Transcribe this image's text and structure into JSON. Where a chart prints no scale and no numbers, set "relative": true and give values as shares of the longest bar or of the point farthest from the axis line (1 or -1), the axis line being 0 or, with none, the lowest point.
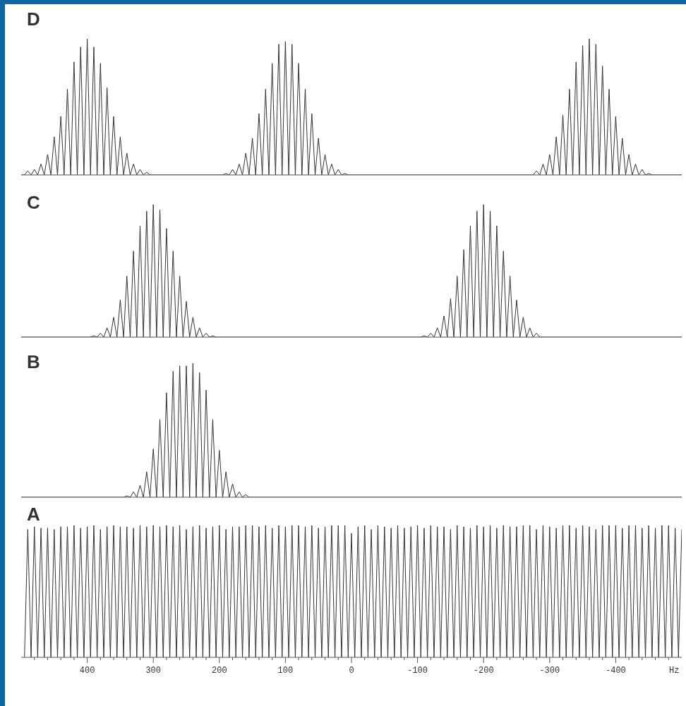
{
  "chart_data": [
    {
      "type": "line",
      "title": "D",
      "relative": true,
      "tick_labels": false,
      "color": "#333333",
      "xlim": [
        500,
        -500
      ],
      "x": [
        500,
        495,
        490,
        485,
        480,
        475,
        470,
        465,
        460,
        455,
        450,
        445,
        440,
        435,
        430,
        425,
        420,
        415,
        410,
        405,
        400,
        395,
        390,
        385,
        380,
        375,
        370,
        365,
        360,
        355,
        350,
        345,
        340,
        335,
        330,
        325,
        320,
        315,
        310,
        305,
        195,
        190,
        185,
        180,
        175,
        170,
        165,
        160,
        155,
        150,
        145,
        140,
        135,
        130,
        125,
        120,
        115,
        110,
        105,
        100,
        95,
        90,
        85,
        80,
        75,
        70,
        65,
        60,
        55,
        50,
        45,
        40,
        35,
        30,
        25,
        20,
        15,
        10,
        5,
        -275,
        -280,
        -285,
        -290,
        -295,
        -300,
        -305,
        -310,
        -315,
        -320,
        -325,
        -330,
        -335,
        -340,
        -345,
        -350,
        -355,
        -360,
        -365,
        -370,
        -375,
        -380,
        -385,
        -390,
        -395,
        -400,
        -405,
        -410,
        -415,
        -420,
        -425,
        -430,
        -435,
        -440,
        -445,
        -450,
        -455,
        -500
      ],
      "values": [
        0,
        0,
        0.03,
        0,
        0.04,
        0,
        0.08,
        0,
        0.15,
        0,
        0.28,
        0,
        0.43,
        0,
        0.63,
        0,
        0.83,
        0,
        0.94,
        0,
        1.0,
        0,
        0.94,
        0,
        0.82,
        0,
        0.64,
        0,
        0.43,
        0,
        0.28,
        0,
        0.16,
        0,
        0.08,
        0,
        0.04,
        0,
        0.02,
        0,
        0,
        0.01,
        0,
        0.04,
        0,
        0.08,
        0,
        0.16,
        0,
        0.27,
        0,
        0.45,
        0,
        0.63,
        0,
        0.82,
        0,
        0.96,
        0,
        0.98,
        0,
        0.96,
        0,
        0.82,
        0,
        0.63,
        0,
        0.45,
        0,
        0.27,
        0,
        0.15,
        0,
        0.08,
        0,
        0.04,
        0,
        0.01,
        0,
        0,
        0.03,
        0,
        0.08,
        0,
        0.15,
        0,
        0.28,
        0,
        0.44,
        0,
        0.63,
        0,
        0.83,
        0,
        0.95,
        0,
        1.0,
        0,
        0.96,
        0,
        0.8,
        0,
        0.63,
        0,
        0.43,
        0,
        0.27,
        0,
        0.15,
        0,
        0.08,
        0,
        0.04,
        0,
        0.01,
        0,
        0
      ]
    },
    {
      "type": "line",
      "title": "C",
      "relative": true,
      "tick_labels": false,
      "color": "#333333",
      "xlim": [
        500,
        -500
      ],
      "x": [
        500,
        395,
        390,
        385,
        380,
        375,
        370,
        365,
        360,
        355,
        350,
        345,
        340,
        335,
        330,
        325,
        320,
        315,
        310,
        305,
        300,
        295,
        290,
        285,
        280,
        275,
        270,
        265,
        260,
        255,
        250,
        245,
        240,
        235,
        230,
        225,
        220,
        215,
        210,
        205,
        -105,
        -110,
        -115,
        -120,
        -125,
        -130,
        -135,
        -140,
        -145,
        -150,
        -155,
        -160,
        -165,
        -170,
        -175,
        -180,
        -185,
        -190,
        -195,
        -200,
        -205,
        -210,
        -215,
        -220,
        -225,
        -230,
        -235,
        -240,
        -245,
        -250,
        -255,
        -260,
        -265,
        -270,
        -275,
        -280,
        -285,
        -500
      ],
      "values": [
        0,
        0,
        0.01,
        0,
        0.03,
        0,
        0.07,
        0,
        0.15,
        0,
        0.28,
        0,
        0.46,
        0,
        0.65,
        0,
        0.84,
        0,
        0.95,
        0,
        1.0,
        0,
        0.96,
        0,
        0.82,
        0,
        0.65,
        0,
        0.46,
        0,
        0.27,
        0,
        0.15,
        0,
        0.07,
        0,
        0.03,
        0,
        0.01,
        0,
        0,
        0.01,
        0,
        0.03,
        0,
        0.07,
        0,
        0.16,
        0,
        0.29,
        0,
        0.46,
        0,
        0.66,
        0,
        0.84,
        0,
        0.95,
        0,
        1.0,
        0,
        0.95,
        0,
        0.84,
        0,
        0.65,
        0,
        0.46,
        0,
        0.28,
        0,
        0.15,
        0,
        0.07,
        0,
        0.03,
        0,
        0
      ]
    },
    {
      "type": "line",
      "title": "B",
      "relative": true,
      "tick_labels": false,
      "color": "#333333",
      "xlim": [
        500,
        -500
      ],
      "x": [
        500,
        345,
        340,
        335,
        330,
        325,
        320,
        315,
        310,
        305,
        300,
        295,
        290,
        285,
        280,
        275,
        270,
        265,
        260,
        255,
        250,
        245,
        240,
        235,
        230,
        225,
        220,
        215,
        210,
        205,
        200,
        195,
        190,
        185,
        180,
        175,
        170,
        165,
        160,
        155,
        -500
      ],
      "values": [
        0,
        0,
        0.01,
        0,
        0.04,
        0,
        0.09,
        0,
        0.19,
        0,
        0.36,
        0,
        0.58,
        0,
        0.78,
        0,
        0.94,
        0,
        0.98,
        0,
        0.98,
        0,
        1.0,
        0,
        0.93,
        0,
        0.8,
        0,
        0.58,
        0,
        0.35,
        0,
        0.19,
        0,
        0.1,
        0,
        0.04,
        0,
        0.02,
        0,
        0
      ]
    },
    {
      "type": "line",
      "title": "A",
      "relative": true,
      "tick_labels": "x",
      "color": "#333333",
      "xlim": [
        500,
        -500
      ],
      "xlabel": "Hz",
      "xticks": [
        {
          "value": 480,
          "label": null
        },
        {
          "value": 460,
          "label": null
        },
        {
          "value": 440,
          "label": null
        },
        {
          "value": 420,
          "label": null
        },
        400,
        {
          "value": 380,
          "label": null
        },
        {
          "value": 360,
          "label": null
        },
        {
          "value": 340,
          "label": null
        },
        {
          "value": 320,
          "label": null
        },
        300,
        {
          "value": 280,
          "label": null
        },
        {
          "value": 260,
          "label": null
        },
        {
          "value": 240,
          "label": null
        },
        {
          "value": 220,
          "label": null
        },
        200,
        {
          "value": 180,
          "label": null
        },
        {
          "value": 160,
          "label": null
        },
        {
          "value": 140,
          "label": null
        },
        {
          "value": 120,
          "label": null
        },
        100,
        {
          "value": 80,
          "label": null
        },
        {
          "value": 60,
          "label": null
        },
        {
          "value": 40,
          "label": null
        },
        {
          "value": 20,
          "label": null
        },
        0,
        {
          "value": -20,
          "label": null
        },
        {
          "value": -40,
          "label": null
        },
        {
          "value": -60,
          "label": null
        },
        {
          "value": -80,
          "label": null
        },
        -100,
        {
          "value": -120,
          "label": null
        },
        {
          "value": -140,
          "label": null
        },
        {
          "value": -160,
          "label": null
        },
        {
          "value": -180,
          "label": null
        },
        -200,
        {
          "value": -220,
          "label": null
        },
        {
          "value": -240,
          "label": null
        },
        {
          "value": -260,
          "label": null
        },
        {
          "value": -280,
          "label": null
        },
        -300,
        {
          "value": -320,
          "label": null
        },
        {
          "value": -340,
          "label": null
        },
        {
          "value": -360,
          "label": null
        },
        {
          "value": -380,
          "label": null
        },
        -400,
        {
          "value": -420,
          "label": null
        },
        {
          "value": -440,
          "label": null
        },
        {
          "value": -460,
          "label": null
        },
        {
          "value": -480,
          "label": null
        }
      ],
      "x": [
        495,
        490,
        485,
        480,
        475,
        470,
        465,
        460,
        455,
        450,
        445,
        440,
        435,
        430,
        425,
        420,
        415,
        410,
        405,
        400,
        395,
        390,
        385,
        380,
        375,
        370,
        365,
        360,
        355,
        350,
        345,
        340,
        335,
        330,
        325,
        320,
        315,
        310,
        305,
        300,
        295,
        290,
        285,
        280,
        275,
        270,
        265,
        260,
        255,
        250,
        245,
        240,
        235,
        230,
        225,
        220,
        215,
        210,
        205,
        200,
        195,
        190,
        185,
        180,
        175,
        170,
        165,
        160,
        155,
        150,
        145,
        140,
        135,
        130,
        125,
        120,
        115,
        110,
        105,
        100,
        95,
        90,
        85,
        80,
        75,
        70,
        65,
        60,
        55,
        50,
        45,
        40,
        35,
        30,
        25,
        20,
        15,
        10,
        5,
        0,
        -5,
        -10,
        -15,
        -20,
        -25,
        -30,
        -35,
        -40,
        -45,
        -50,
        -55,
        -60,
        -65,
        -70,
        -75,
        -80,
        -85,
        -90,
        -95,
        -100,
        -105,
        -110,
        -115,
        -120,
        -125,
        -130,
        -135,
        -140,
        -145,
        -150,
        -155,
        -160,
        -165,
        -170,
        -175,
        -180,
        -185,
        -190,
        -195,
        -200,
        -205,
        -210,
        -215,
        -220,
        -225,
        -230,
        -235,
        -240,
        -245,
        -250,
        -255,
        -260,
        -265,
        -270,
        -275,
        -280,
        -285,
        -290,
        -295,
        -300,
        -305,
        -310,
        -315,
        -320,
        -325,
        -330,
        -335,
        -340,
        -345,
        -350,
        -355,
        -360,
        -365,
        -370,
        -375,
        -380,
        -385,
        -390,
        -395,
        -400,
        -405,
        -410,
        -415,
        -420,
        -425,
        -430,
        -435,
        -440,
        -445,
        -450,
        -455,
        -460,
        -465,
        -470,
        -475,
        -480,
        -485,
        -490,
        -495,
        -500
      ],
      "values": [
        0,
        0.97,
        0,
        0.99,
        0,
        0.98,
        0,
        0.98,
        0,
        0.97,
        0,
        0.99,
        0,
        0.99,
        0,
        1,
        0,
        0.98,
        0,
        0.99,
        0,
        1,
        0,
        0.97,
        0,
        0.99,
        0,
        1,
        0,
        0.99,
        0,
        0.99,
        0,
        0.98,
        0,
        1,
        0,
        0.99,
        0,
        1,
        0,
        0.99,
        0,
        1,
        0,
        0.99,
        0,
        1,
        0,
        0.97,
        0,
        0.99,
        0,
        1,
        0,
        0.98,
        0,
        0.99,
        0,
        1,
        0,
        0.97,
        0,
        0.99,
        0,
        0.99,
        0,
        1,
        0,
        1,
        0,
        0.99,
        0,
        1,
        0,
        0.98,
        0,
        1,
        0,
        0.99,
        0,
        1,
        0,
        1,
        0,
        0.99,
        0,
        1,
        0,
        0.98,
        0,
        0.99,
        0,
        1,
        0,
        1,
        0,
        1,
        0,
        0.94,
        0,
        0.99,
        0,
        1,
        0,
        0.97,
        0,
        1,
        0,
        0.99,
        0,
        0.98,
        0,
        1,
        0,
        0.98,
        0,
        0.99,
        0,
        1,
        0,
        0.98,
        0,
        1,
        0,
        0.99,
        0,
        0.99,
        0,
        0.97,
        0,
        1,
        0,
        0.99,
        0,
        0.98,
        0,
        1,
        0,
        0.99,
        0,
        1,
        0,
        0.98,
        0,
        1,
        0,
        0.99,
        0,
        0.99,
        0,
        1,
        0,
        1,
        0,
        0.97,
        0,
        1,
        0,
        0.99,
        0,
        0.98,
        0,
        1,
        0,
        1,
        0,
        0.98,
        0,
        1,
        0,
        0.99,
        0,
        0.97,
        0,
        1,
        0,
        1,
        0,
        1,
        0,
        0.98,
        0,
        1,
        0,
        1,
        0,
        0.98,
        0,
        1,
        0,
        0.98,
        0,
        1,
        0,
        1,
        0,
        0.98,
        0,
        0.97
      ]
    }
  ]
}
